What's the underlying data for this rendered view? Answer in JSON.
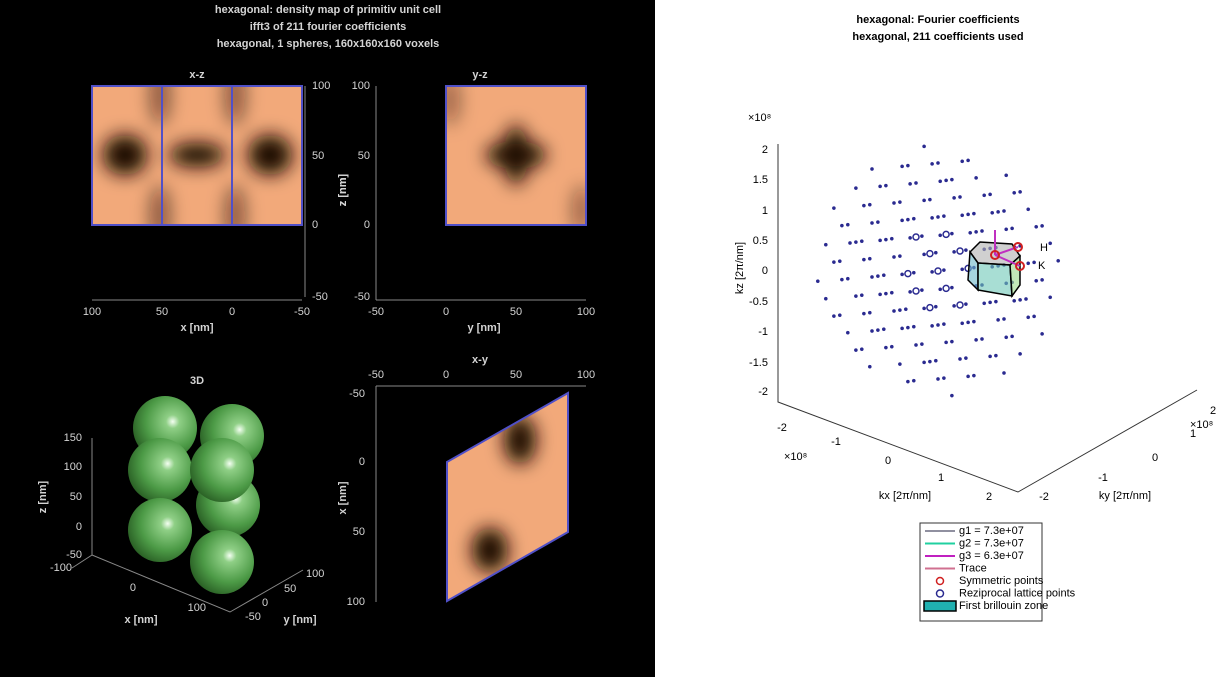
{
  "left": {
    "title": [
      "hexagonal: density map of primitiv unit cell",
      "ifft3 of 211 fourier coefficients",
      "hexagonal, 1 spheres, 160x160x160 voxels"
    ],
    "xz": {
      "title": "x-z",
      "xlabel": "x [nm]",
      "ylabel": "z [nm]",
      "xticks": [
        100,
        50,
        0,
        -50
      ],
      "yticks": [
        100,
        50,
        0,
        -50
      ]
    },
    "yz": {
      "title": "y-z",
      "xlabel": "y [nm]",
      "ylabel": "z [nm]",
      "xticks": [
        -50,
        0,
        50,
        100
      ],
      "yticks": [
        100,
        50,
        0,
        -50
      ]
    },
    "view3d": {
      "title": "3D",
      "xlabel": "x [nm]",
      "ylabel": "y [nm]",
      "zlabel": "z [nm]",
      "xticks": [
        -100,
        0,
        100
      ],
      "yticks": [
        -50,
        0,
        50,
        100
      ],
      "zticks": [
        150,
        100,
        50,
        0,
        -50
      ]
    },
    "xy": {
      "title": "x-y",
      "ylabel": "x [nm]",
      "xticks": [
        -50,
        0,
        50,
        100
      ],
      "yticks": [
        -50,
        0,
        50,
        100
      ]
    }
  },
  "right": {
    "title": [
      "hexagonal: Fourier coefficients",
      "hexagonal, 211 coefficients used"
    ],
    "xlabel": "kx [2π/nm]",
    "ylabel": "ky [2π/nm]",
    "zlabel": "kz [2π/nm]",
    "x_exponent": "×10⁸",
    "y_exponent": "×10⁸",
    "z_exponent": "×10⁸",
    "xticks": [
      -2,
      -1,
      0,
      1,
      2
    ],
    "yticks": [
      -2,
      -1,
      0,
      1,
      2
    ],
    "zticks": [
      2,
      1.5,
      1,
      0.5,
      0,
      -0.5,
      -1,
      -1.5,
      -2
    ],
    "point_labels": [
      "H",
      "K"
    ],
    "legend": [
      "g1 = 7.3e+07",
      "g2 = 7.3e+07",
      "g3 = 6.3e+07",
      "Trace",
      "Symmetric points",
      "Reziprocal lattice points",
      "First brillouin zone"
    ]
  }
}
